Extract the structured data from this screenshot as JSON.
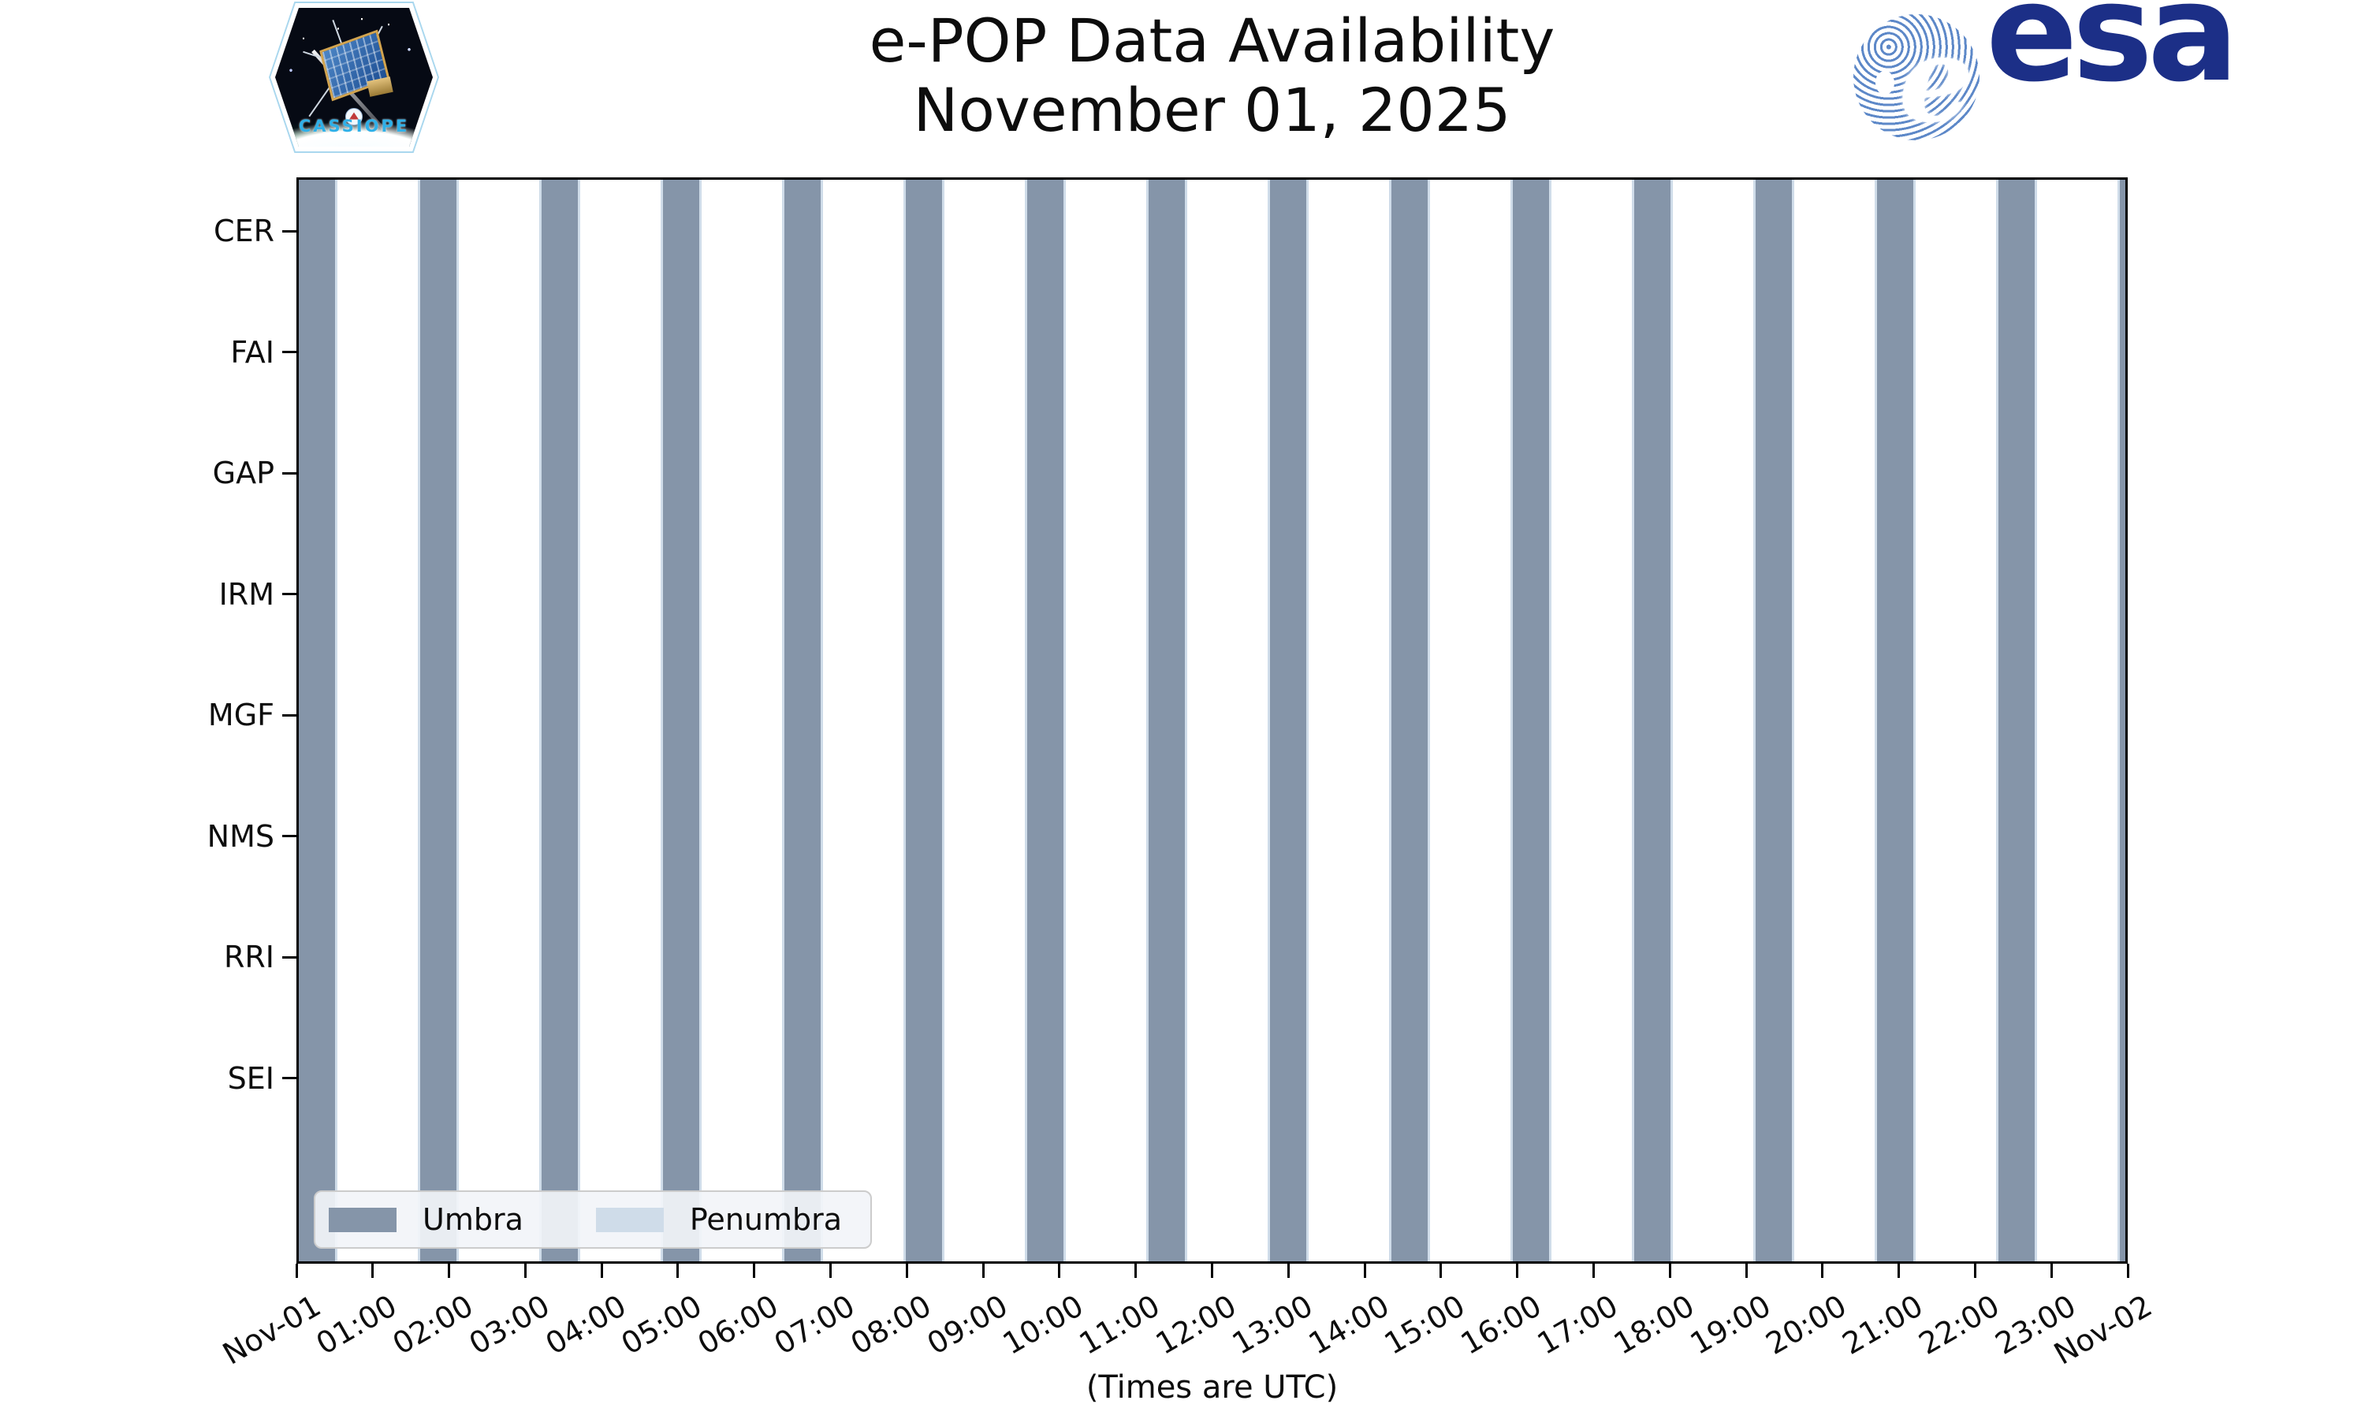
{
  "figure": {
    "title_line1": "e-POP Data Availability",
    "title_line2": "November 01, 2025",
    "xlabel": "(Times are UTC)"
  },
  "cassiope_patch": {
    "label": "CASSIOPE"
  },
  "esa_logo": {
    "wordmark": "esa",
    "globe_letter": "e"
  },
  "y_axis": {
    "categories": [
      "CER",
      "FAI",
      "GAP",
      "IRM",
      "MGF",
      "NMS",
      "RRI",
      "SEI"
    ]
  },
  "x_axis": {
    "tick_labels": [
      "Nov-01",
      "01:00",
      "02:00",
      "03:00",
      "04:00",
      "05:00",
      "06:00",
      "07:00",
      "08:00",
      "09:00",
      "10:00",
      "11:00",
      "12:00",
      "13:00",
      "14:00",
      "15:00",
      "16:00",
      "17:00",
      "18:00",
      "19:00",
      "20:00",
      "21:00",
      "22:00",
      "23:00",
      "Nov-02"
    ]
  },
  "legend": {
    "items": [
      {
        "label": "Umbra",
        "color": "#8595a9"
      },
      {
        "label": "Penumbra",
        "color": "#cfdce9"
      }
    ]
  },
  "colors": {
    "umbra": "#8595a9",
    "penumbra": "#cfdce9",
    "esa_blue": "#1c2f87",
    "axis": "#000000"
  },
  "chart_data": {
    "type": "timeline",
    "title": "e-POP Data Availability",
    "subtitle": "November 01, 2025",
    "time_note": "(Times are UTC)",
    "x_range_minutes": [
      0,
      1440
    ],
    "x_tick_interval_minutes": 60,
    "rows": [
      "CER",
      "FAI",
      "GAP",
      "IRM",
      "MGF",
      "NMS",
      "RRI",
      "SEI"
    ],
    "rows_have_data_marks": false,
    "series": [
      {
        "name": "Umbra",
        "color": "#8595a9",
        "style": "full-height vertical band",
        "intervals_min": [
          [
            0,
            28.5
          ],
          [
            95.7,
            124.2
          ],
          [
            191.4,
            219.9
          ],
          [
            287.1,
            315.6
          ],
          [
            382.8,
            411.3
          ],
          [
            478.5,
            507.0
          ],
          [
            574.2,
            602.7
          ],
          [
            669.9,
            698.4
          ],
          [
            765.6,
            794.1
          ],
          [
            861.3,
            889.8
          ],
          [
            957.0,
            985.5
          ],
          [
            1052.7,
            1081.2
          ],
          [
            1148.4,
            1176.9
          ],
          [
            1244.1,
            1272.6
          ],
          [
            1339.8,
            1368.3
          ],
          [
            1435.5,
            1440.0
          ]
        ]
      },
      {
        "name": "Penumbra",
        "color": "#cfdce9",
        "style": "thin strips flanking each umbra band",
        "margin_min": 2
      }
    ],
    "legend_position": "lower left",
    "grid": false
  }
}
